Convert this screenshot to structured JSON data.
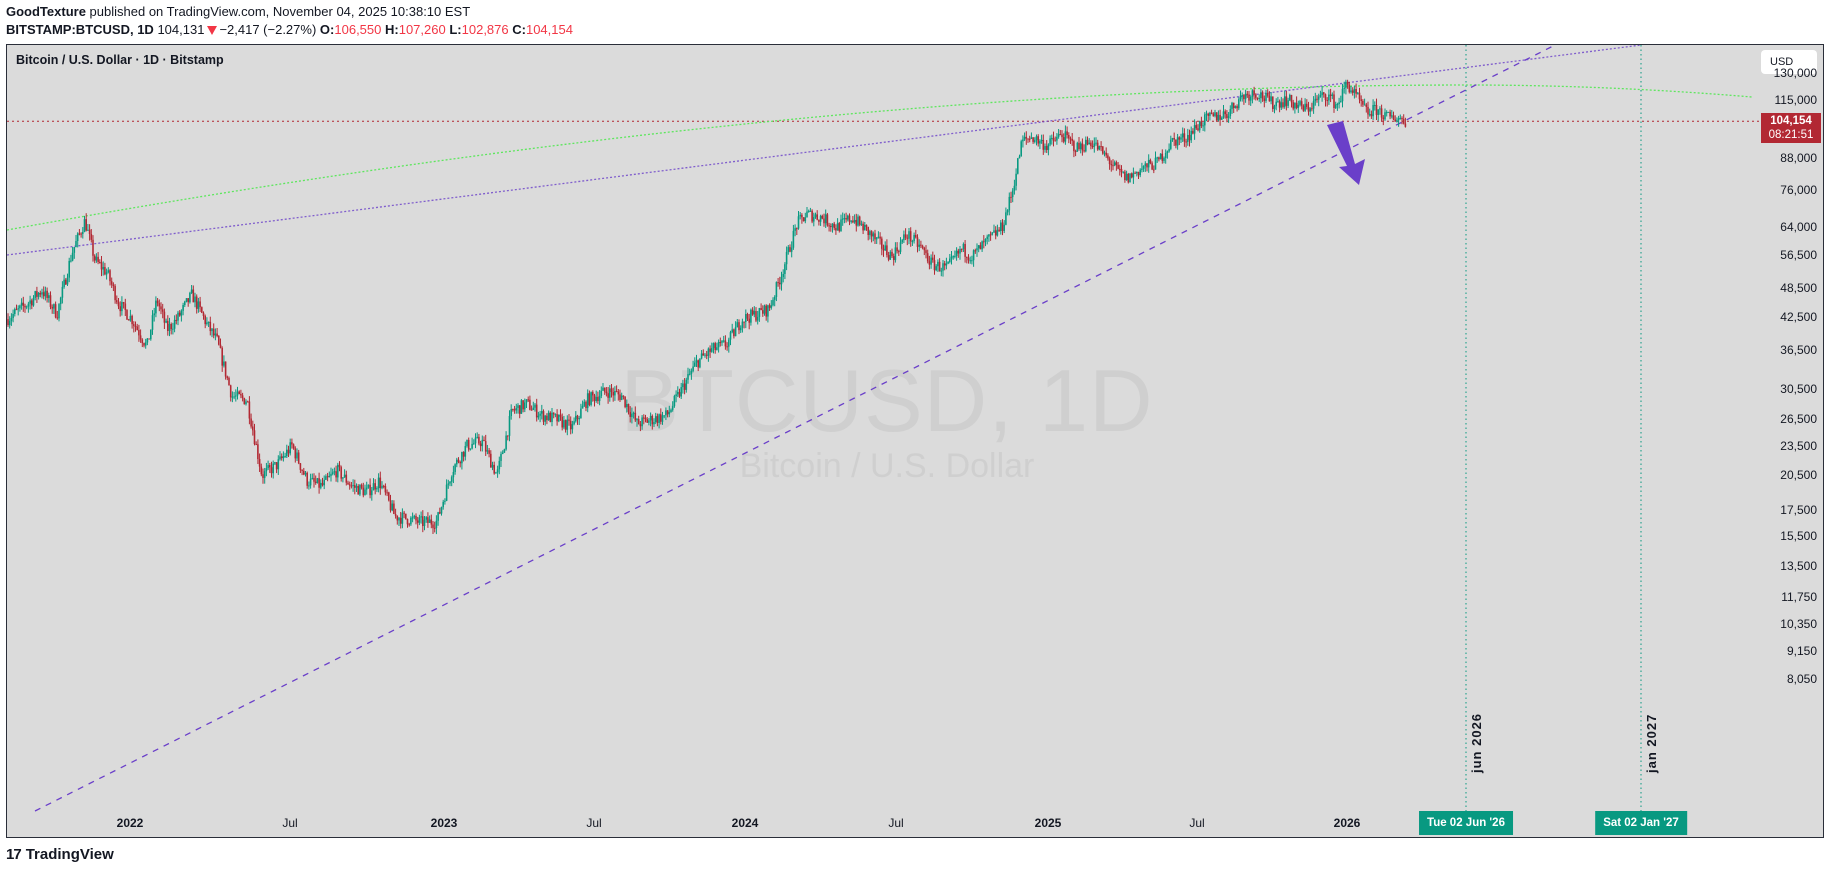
{
  "header": {
    "author": "GoodTexture",
    "published_text": " published on TradingView.com, November 04, 2025 10:38:10 EST",
    "symbol": "BITSTAMP:BTCUSD, 1D",
    "last": "104,131",
    "change": "−2,417 (−2.27%)",
    "o_label": "O:",
    "o": "106,550",
    "h_label": "H:",
    "h": "107,260",
    "l_label": "L:",
    "l": "102,876",
    "c_label": "C:",
    "c": "104,154"
  },
  "chart": {
    "title": "Bitcoin / U.S. Dollar · 1D · Bitstamp",
    "watermark_main": "BTCUSD, 1D",
    "watermark_sub": "Bitcoin / U.S. Dollar",
    "currency_button": "USD",
    "price_tag": {
      "price": "104,154",
      "countdown": "08:21:51"
    },
    "colors": {
      "up": "#089981",
      "down": "#b22833",
      "background": "#dbdbdb",
      "trendline": "#6a3fc9",
      "arc": "#5ee65e",
      "price_line": "#b22833",
      "date_tag": "#089981"
    },
    "vertical_markers": [
      {
        "label": "jun 2026",
        "date_tag": "Tue 02 Jun '26"
      },
      {
        "label": "jan 2027",
        "date_tag": "Sat 02 Jan '27"
      }
    ]
  },
  "footer": {
    "logo_glyph": "17",
    "brand": "TradingView"
  },
  "chart_data": {
    "type": "candlestick",
    "title": "Bitcoin / U.S. Dollar · 1D · Bitstamp",
    "xlabel": "",
    "ylabel": "USD (log scale)",
    "y_scale": "log",
    "y_ticks": [
      "130,000",
      "115,000",
      "88,000",
      "76,000",
      "64,000",
      "56,500",
      "48,500",
      "42,500",
      "36,500",
      "30,500",
      "26,500",
      "23,500",
      "20,500",
      "17,500",
      "15,500",
      "13,500",
      "11,750",
      "10,350",
      "9,150",
      "8,050"
    ],
    "x_ticks": [
      "2022",
      "Jul",
      "2023",
      "Jul",
      "2024",
      "Jul",
      "2025",
      "Jul",
      "2026"
    ],
    "x": [
      "2021-09",
      "2021-11",
      "2022-01",
      "2022-03",
      "2022-05",
      "2022-06",
      "2022-08",
      "2022-11",
      "2023-01",
      "2023-03",
      "2023-07",
      "2023-09",
      "2023-10",
      "2024-01",
      "2024-03",
      "2024-05",
      "2024-08",
      "2024-10",
      "2024-12",
      "2025-01",
      "2025-04",
      "2025-05",
      "2025-07",
      "2025-08",
      "2025-10",
      "2025-11"
    ],
    "close_approx": [
      44000,
      68000,
      38000,
      46000,
      30000,
      20000,
      23000,
      16500,
      17000,
      28000,
      30500,
      26000,
      34000,
      45000,
      72000,
      68000,
      52000,
      62000,
      100000,
      105000,
      76000,
      103000,
      118000,
      113000,
      124000,
      104154
    ],
    "annotations": [
      "Rising support trendline (dashed) from Nov 2022 low",
      "Upper trendline (dotted) through Nov 2021 and Oct 2025 highs",
      "Green curved arc resistance",
      "Purple downward arrow near current price",
      "Vertical markers at Tue 02 Jun '26 and Sat 02 Jan '27"
    ],
    "last_price": 104154
  }
}
